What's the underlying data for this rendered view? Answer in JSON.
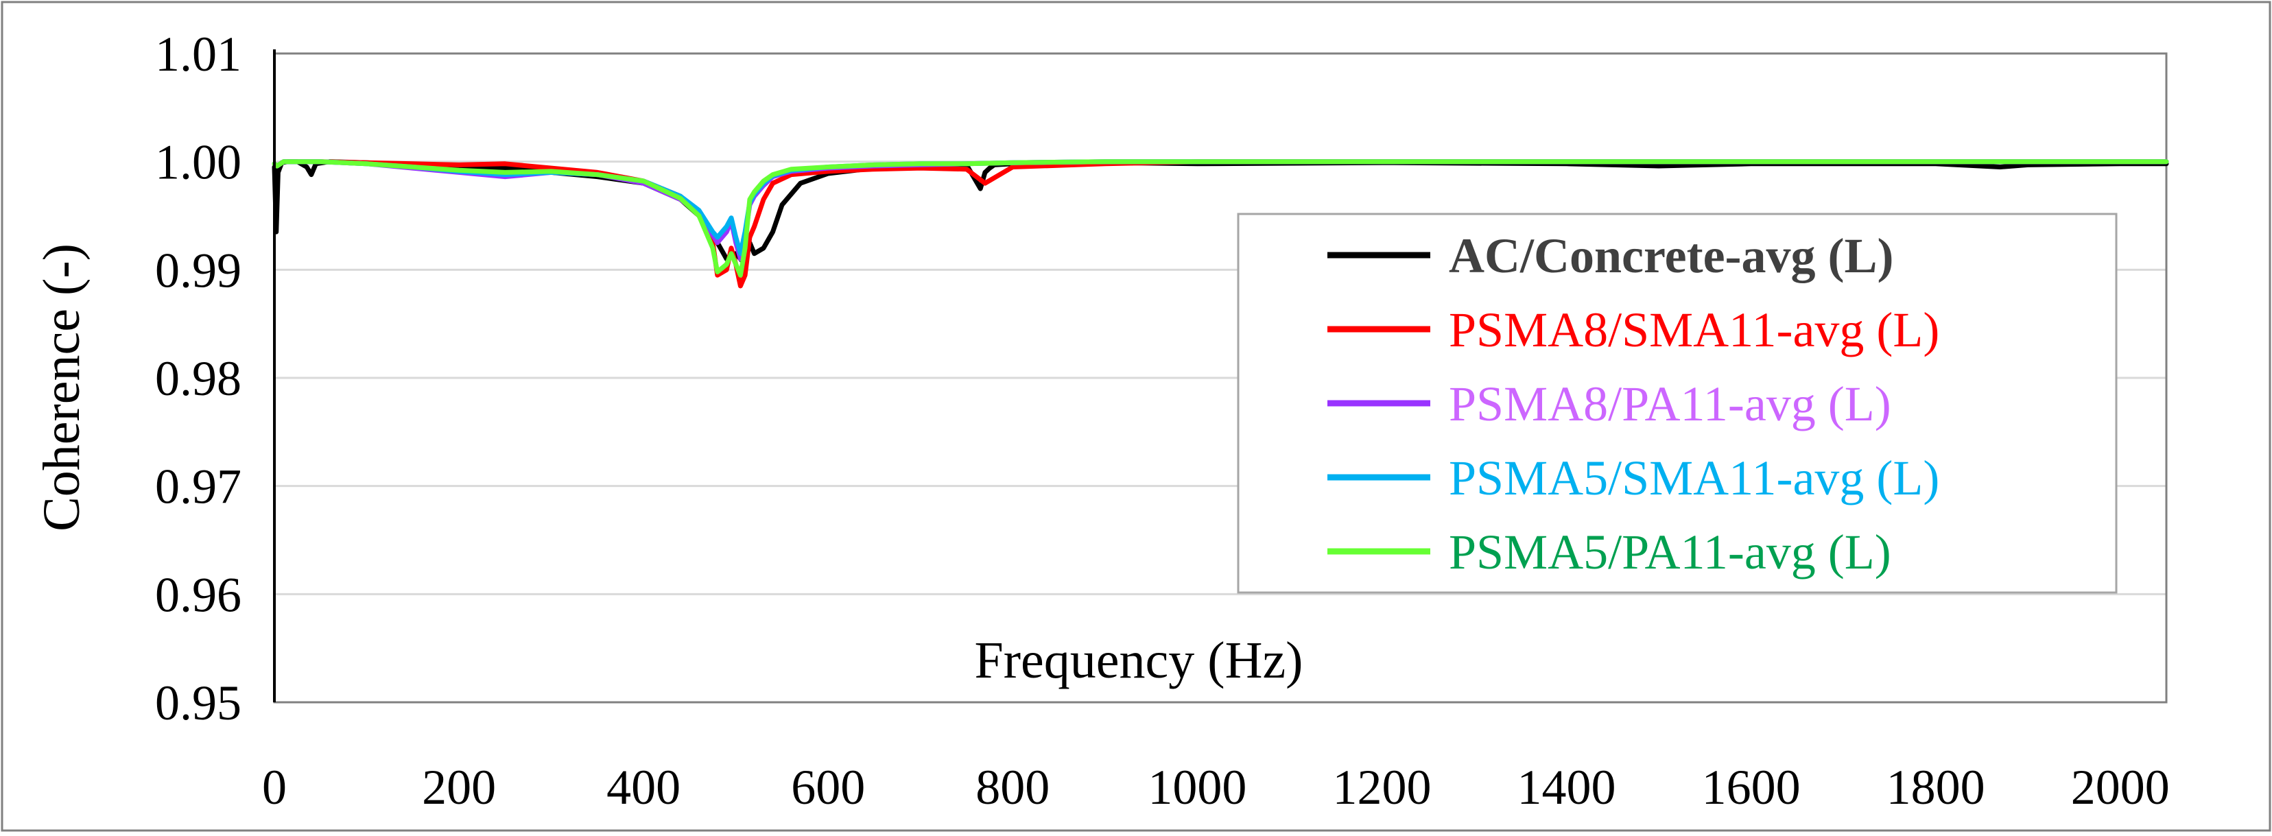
{
  "chart_data": {
    "type": "line",
    "title": "",
    "xlabel": "Frequency (Hz)",
    "ylabel": "Coherence (-)",
    "xlim": [
      0,
      2050
    ],
    "ylim": [
      0.95,
      1.01
    ],
    "x_ticks": [
      "0",
      "200",
      "400",
      "600",
      "800",
      "1000",
      "1200",
      "1400",
      "1600",
      "1800",
      "2000"
    ],
    "x_tick_values": [
      0,
      200,
      400,
      600,
      800,
      1000,
      1200,
      1400,
      1600,
      1800,
      2000
    ],
    "y_ticks": [
      "0.95",
      "0.96",
      "0.97",
      "0.98",
      "0.99",
      "1.00",
      "1.01"
    ],
    "y_tick_values": [
      0.95,
      0.96,
      0.97,
      0.98,
      0.99,
      1.0,
      1.01
    ],
    "grid": true,
    "legend_position": "right",
    "series": [
      {
        "name": "AC/Concrete-avg (L)",
        "color": "#000000",
        "label_color": "#404040",
        "label_bold": true,
        "x": [
          0,
          2,
          4,
          8,
          15,
          25,
          35,
          40,
          45,
          60,
          100,
          150,
          200,
          250,
          300,
          350,
          400,
          440,
          460,
          480,
          490,
          500,
          505,
          510,
          515,
          520,
          530,
          540,
          550,
          570,
          600,
          650,
          700,
          750,
          765,
          770,
          775,
          780,
          800,
          900,
          1000,
          1200,
          1400,
          1500,
          1600,
          1800,
          1870,
          1900,
          2000,
          2050
        ],
        "y": [
          0.9995,
          0.9935,
          0.999,
          0.9999,
          1.0,
          1.0,
          0.9995,
          0.9988,
          0.9998,
          1.0,
          0.9999,
          0.9997,
          0.9995,
          0.9994,
          0.999,
          0.9986,
          0.998,
          0.9965,
          0.995,
          0.9925,
          0.991,
          0.9915,
          0.991,
          0.9905,
          0.9925,
          0.9915,
          0.992,
          0.9935,
          0.996,
          0.998,
          0.9989,
          0.9994,
          0.9996,
          0.9997,
          0.9975,
          0.999,
          0.9994,
          0.9997,
          0.9998,
          0.9999,
          0.9998,
          0.9999,
          0.9998,
          0.9996,
          0.9998,
          0.9998,
          0.9995,
          0.9997,
          0.9998,
          0.9998
        ]
      },
      {
        "name": "PSMA8/SMA11-avg (L)",
        "color": "#ff0000",
        "label_color": "#ff0000",
        "label_bold": false,
        "x": [
          0,
          3,
          10,
          50,
          100,
          150,
          200,
          250,
          300,
          350,
          400,
          440,
          460,
          475,
          480,
          490,
          495,
          500,
          505,
          510,
          515,
          520,
          530,
          540,
          560,
          600,
          650,
          700,
          750,
          770,
          800,
          900,
          1000,
          1200,
          1400,
          1600,
          1800,
          2000,
          2050
        ],
        "y": [
          0.9998,
          0.9996,
          1.0,
          1.0,
          0.9999,
          0.9998,
          0.9997,
          0.9998,
          0.9994,
          0.999,
          0.9982,
          0.9968,
          0.995,
          0.9925,
          0.9895,
          0.99,
          0.992,
          0.9905,
          0.9885,
          0.9895,
          0.993,
          0.994,
          0.9965,
          0.998,
          0.9988,
          0.9991,
          0.9993,
          0.9994,
          0.9993,
          0.998,
          0.9995,
          0.9998,
          1.0,
          1.0,
          1.0,
          1.0,
          1.0,
          1.0,
          1.0
        ]
      },
      {
        "name": "PSMA8/PA11-avg (L)",
        "color": "#9933ff",
        "label_color": "#cc66ff",
        "label_bold": false,
        "x": [
          0,
          3,
          10,
          50,
          100,
          150,
          200,
          250,
          300,
          350,
          400,
          440,
          460,
          475,
          480,
          490,
          495,
          500,
          505,
          510,
          515,
          520,
          530,
          540,
          560,
          600,
          650,
          700,
          750,
          800,
          900,
          1000,
          1200,
          1400,
          1600,
          1800,
          2000,
          2050
        ],
        "y": [
          0.9998,
          0.9996,
          1.0,
          1.0,
          0.9998,
          0.9994,
          0.999,
          0.9986,
          0.999,
          0.9988,
          0.998,
          0.9965,
          0.9952,
          0.9932,
          0.9925,
          0.9935,
          0.9945,
          0.9925,
          0.991,
          0.993,
          0.996,
          0.9968,
          0.9978,
          0.9986,
          0.9991,
          0.9994,
          0.9996,
          0.9997,
          0.9998,
          0.9999,
          1.0,
          1.0,
          1.0,
          1.0,
          1.0,
          1.0,
          1.0,
          1.0
        ]
      },
      {
        "name": "PSMA5/SMA11-avg (L)",
        "color": "#00b0f0",
        "label_color": "#00b0f0",
        "label_bold": false,
        "x": [
          0,
          3,
          10,
          50,
          100,
          150,
          200,
          250,
          300,
          350,
          400,
          440,
          460,
          475,
          480,
          490,
          495,
          500,
          505,
          510,
          515,
          520,
          530,
          540,
          560,
          600,
          650,
          700,
          750,
          800,
          900,
          1000,
          1200,
          1400,
          1600,
          1800,
          2000,
          2050
        ],
        "y": [
          0.9998,
          0.9996,
          1.0,
          1.0,
          0.9998,
          0.9995,
          0.9991,
          0.9988,
          0.999,
          0.9988,
          0.9982,
          0.9968,
          0.9955,
          0.9935,
          0.993,
          0.994,
          0.9948,
          0.993,
          0.9915,
          0.9935,
          0.9962,
          0.997,
          0.998,
          0.9987,
          0.9992,
          0.9995,
          0.9997,
          0.9998,
          0.9998,
          0.9999,
          1.0,
          1.0,
          1.0,
          1.0,
          1.0,
          1.0,
          1.0,
          1.0
        ]
      },
      {
        "name": "PSMA5/PA11-avg (L)",
        "color": "#66ff33",
        "label_color": "#00a050",
        "label_bold": false,
        "x": [
          0,
          3,
          10,
          50,
          100,
          150,
          200,
          250,
          300,
          350,
          400,
          440,
          460,
          475,
          480,
          490,
          495,
          500,
          505,
          510,
          515,
          520,
          530,
          540,
          560,
          600,
          650,
          700,
          750,
          800,
          900,
          1000,
          1200,
          1400,
          1600,
          1800,
          2000,
          2050
        ],
        "y": [
          0.9998,
          0.9996,
          1.0,
          1.0,
          0.9998,
          0.9995,
          0.9992,
          0.999,
          0.9991,
          0.9988,
          0.9982,
          0.9966,
          0.995,
          0.992,
          0.9898,
          0.9905,
          0.9915,
          0.9905,
          0.9895,
          0.992,
          0.9965,
          0.9972,
          0.9982,
          0.9988,
          0.9993,
          0.9995,
          0.9997,
          0.9998,
          0.9998,
          0.9999,
          1.0,
          1.0,
          1.0,
          1.0,
          1.0,
          1.0,
          1.0,
          1.0
        ]
      }
    ]
  }
}
